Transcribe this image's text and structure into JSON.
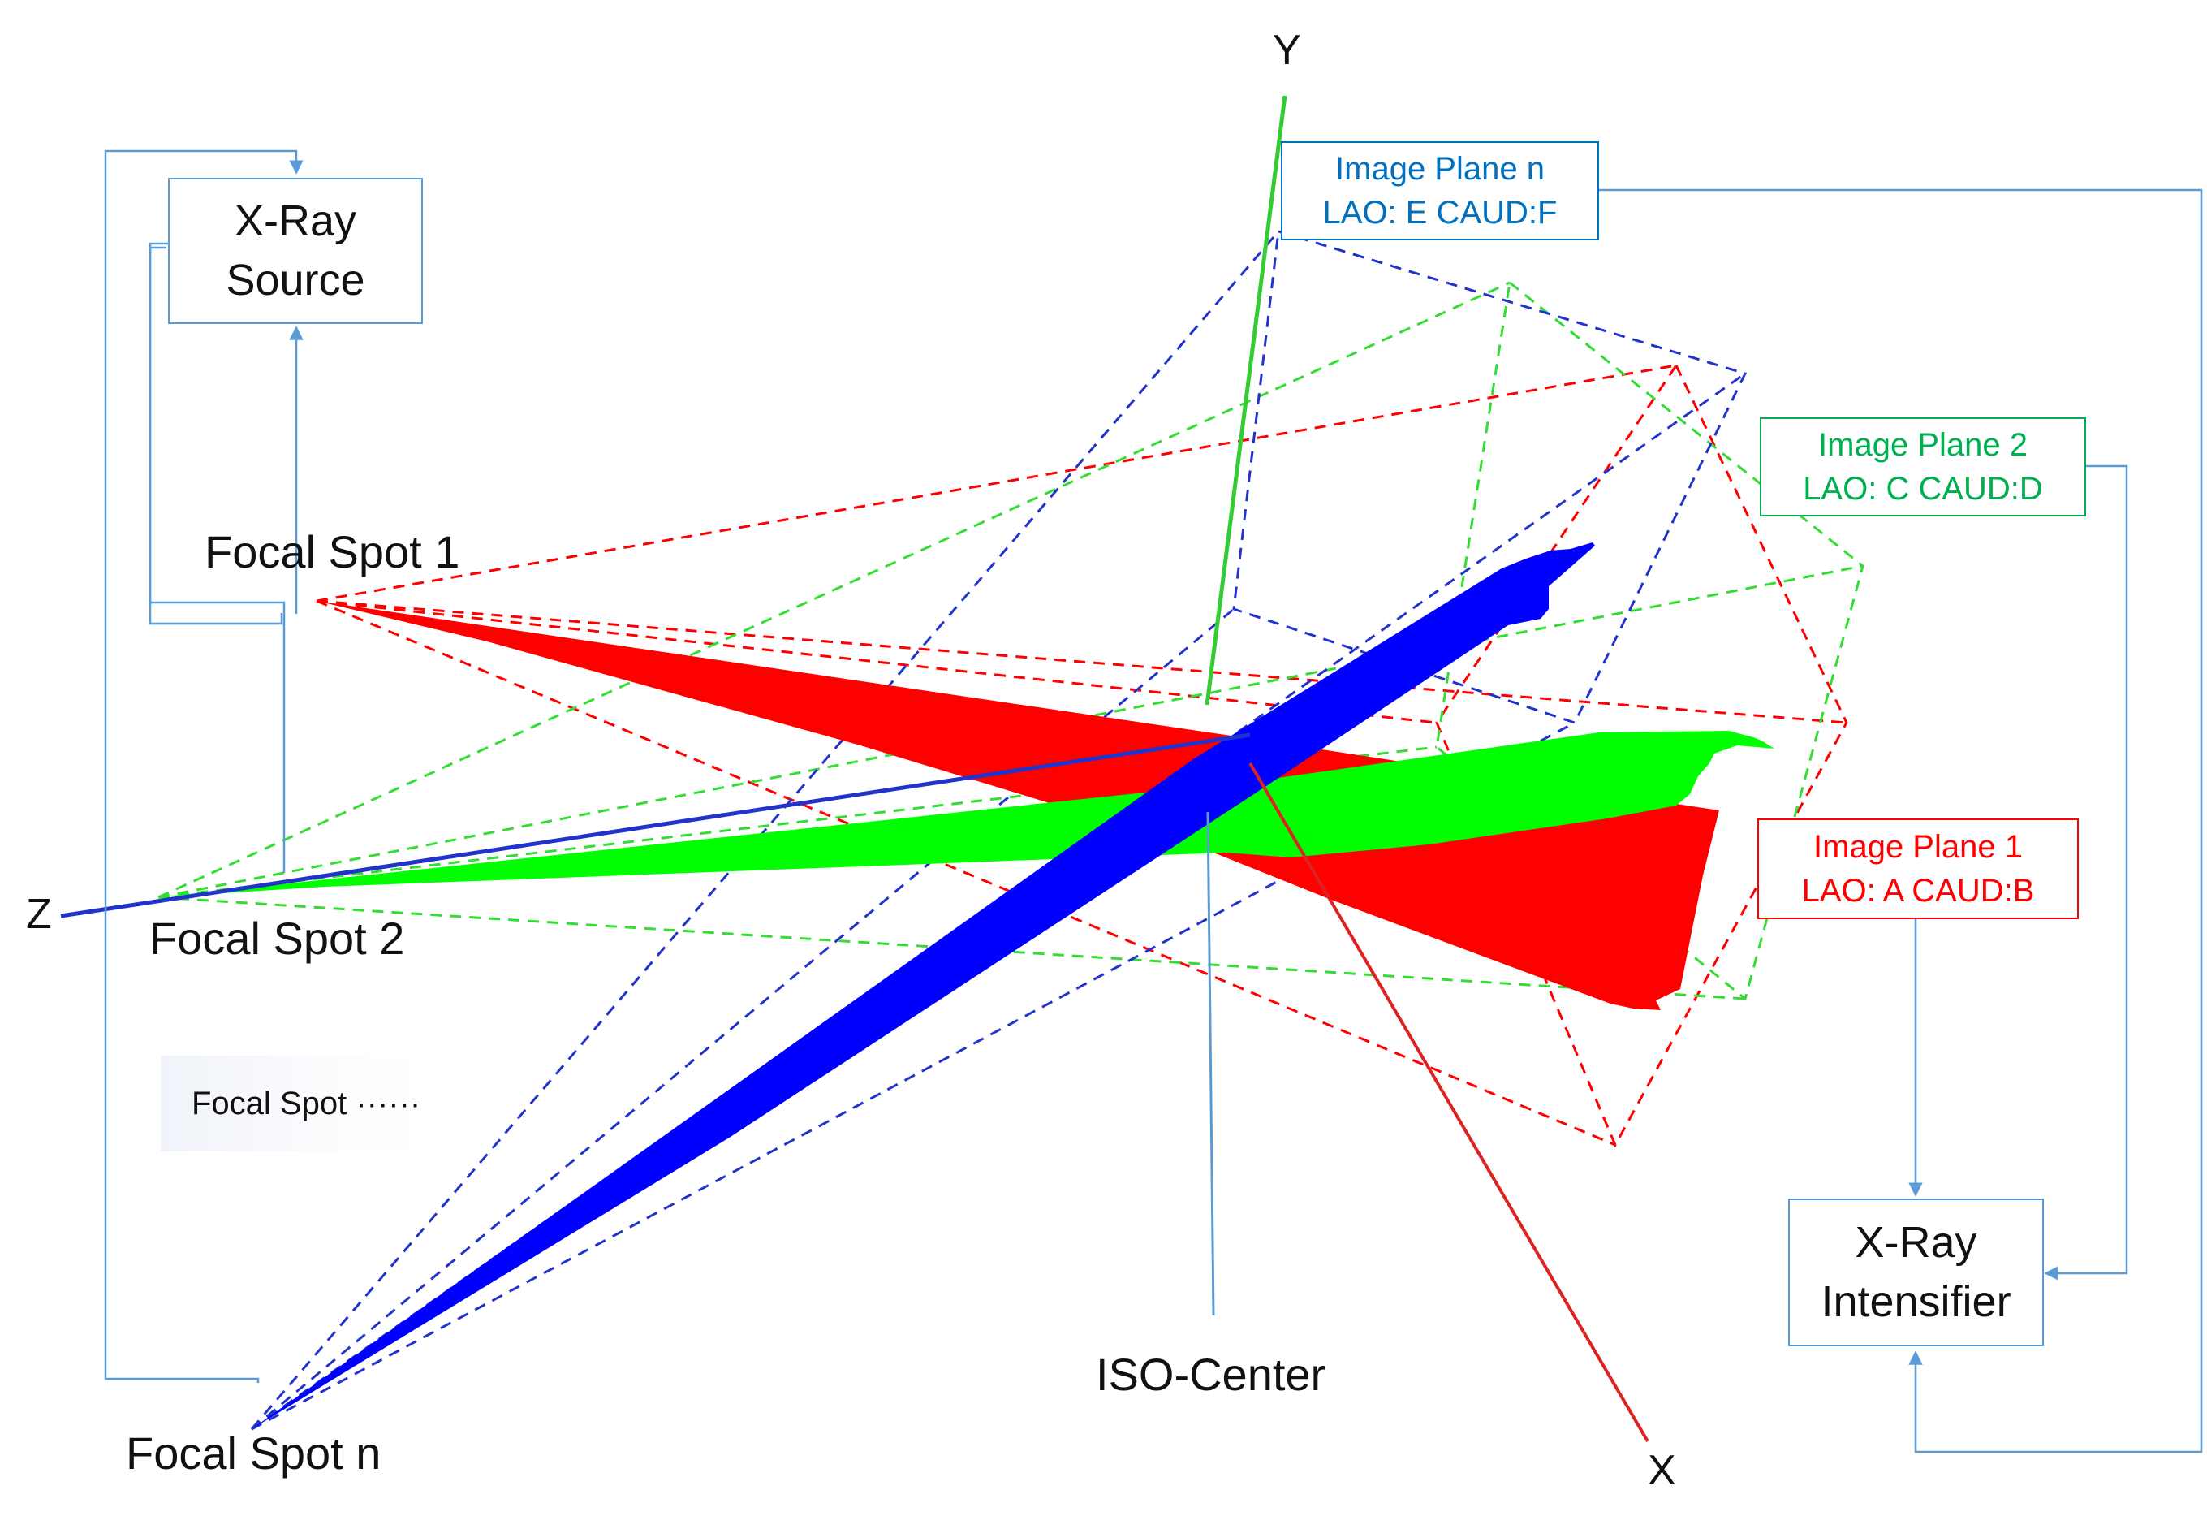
{
  "axes": {
    "x": "X",
    "y": "Y",
    "z": "Z"
  },
  "focal_spots": {
    "spot1": "Focal Spot 1",
    "spot2": "Focal Spot 2",
    "spotn": "Focal Spot n",
    "more": "Focal Spot ······"
  },
  "iso_center": "ISO-Center",
  "xray_source": {
    "line1": "X-Ray",
    "line2": "Source"
  },
  "xray_intensifier": {
    "line1": "X-Ray",
    "line2": "Intensifier"
  },
  "image_planes": [
    {
      "title": "Image Plane 1",
      "angles": "LAO: A CAUD:B",
      "color": "#ff0000"
    },
    {
      "title": "Image Plane 2",
      "angles": "LAO: C CAUD:D",
      "color": "#00b050"
    },
    {
      "title": "Image Plane n",
      "angles": "LAO: E CAUD:F",
      "color": "#0070c0"
    }
  ],
  "colors": {
    "red": "#ff0000",
    "green": "#00ff00",
    "blue": "#0000ff",
    "connector": "#5b9bd5",
    "axis_y": "#33cc33",
    "axis_x": "#dd2222",
    "axis_z": "#2233cc"
  }
}
